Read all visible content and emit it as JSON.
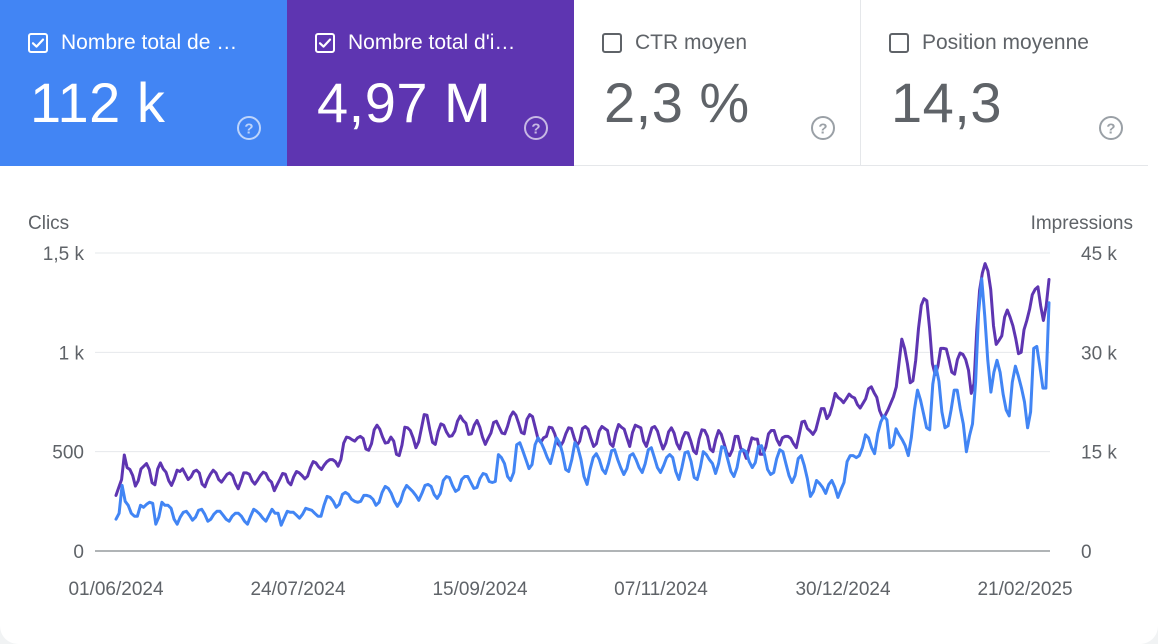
{
  "metrics": [
    {
      "label": "Nombre total de …",
      "value": "112 k",
      "checked": true,
      "color": "#4285f4",
      "icon": "help-icon"
    },
    {
      "label": "Nombre total d'i…",
      "value": "4,97 M",
      "checked": true,
      "color": "#5e35b1",
      "icon": "help-icon"
    },
    {
      "label": "CTR moyen",
      "value": "2,3 %",
      "checked": false,
      "color": "#ffffff",
      "icon": "help-icon"
    },
    {
      "label": "Position moyenne",
      "value": "14,3",
      "checked": false,
      "color": "#ffffff",
      "icon": "help-icon"
    }
  ],
  "chart_data": {
    "type": "line",
    "ylabel_left": "Clics",
    "ylabel_right": "Impressions",
    "y_left_ticks": [
      "0",
      "500",
      "1 k",
      "1,5 k"
    ],
    "y_right_ticks": [
      "0",
      "15 k",
      "30 k",
      "45 k"
    ],
    "ylim_left": [
      0,
      1500
    ],
    "ylim_right": [
      0,
      45000
    ],
    "x_ticks": [
      "01/06/2024",
      "24/07/2024",
      "15/09/2024",
      "07/11/2024",
      "30/12/2024",
      "21/02/2025"
    ],
    "grid": true,
    "series": [
      {
        "name": "Clics",
        "axis": "left",
        "color": "#4285f4",
        "values": [
          160,
          190,
          330,
          250,
          230,
          190,
          175,
          175,
          230,
          220,
          235,
          245,
          240,
          135,
          170,
          245,
          230,
          230,
          215,
          160,
          135,
          170,
          195,
          200,
          180,
          155,
          170,
          205,
          210,
          185,
          150,
          160,
          185,
          200,
          200,
          180,
          160,
          150,
          175,
          190,
          190,
          175,
          150,
          135,
          175,
          210,
          200,
          185,
          165,
          150,
          180,
          210,
          190,
          190,
          130,
          165,
          200,
          195,
          195,
          180,
          165,
          185,
          215,
          210,
          205,
          190,
          175,
          175,
          230,
          275,
          270,
          250,
          220,
          235,
          285,
          295,
          285,
          260,
          250,
          245,
          250,
          280,
          280,
          275,
          260,
          230,
          245,
          295,
          325,
          315,
          290,
          250,
          225,
          250,
          300,
          330,
          315,
          300,
          280,
          255,
          290,
          330,
          335,
          325,
          285,
          265,
          290,
          355,
          375,
          370,
          330,
          300,
          310,
          360,
          375,
          375,
          345,
          315,
          320,
          365,
          390,
          385,
          350,
          345,
          350,
          485,
          470,
          440,
          375,
          355,
          395,
          535,
          545,
          505,
          460,
          415,
          435,
          535,
          570,
          545,
          510,
          470,
          440,
          500,
          570,
          545,
          490,
          410,
          400,
          460,
          545,
          520,
          460,
          375,
          335,
          410,
          470,
          490,
          460,
          410,
          390,
          440,
          505,
          510,
          460,
          420,
          385,
          415,
          480,
          490,
          460,
          420,
          395,
          440,
          510,
          520,
          470,
          420,
          395,
          430,
          470,
          485,
          470,
          400,
          360,
          420,
          495,
          500,
          450,
          370,
          360,
          420,
          500,
          485,
          460,
          440,
          390,
          440,
          525,
          520,
          460,
          400,
          375,
          420,
          500,
          510,
          500,
          450,
          420,
          445,
          525,
          530,
          485,
          410,
          385,
          395,
          465,
          510,
          500,
          440,
          380,
          345,
          380,
          465,
          480,
          430,
          365,
          275,
          300,
          355,
          340,
          320,
          290,
          335,
          355,
          320,
          270,
          310,
          345,
          450,
          480,
          480,
          470,
          480,
          520,
          585,
          570,
          520,
          490,
          590,
          650,
          680,
          660,
          520,
          535,
          615,
          585,
          560,
          530,
          480,
          570,
          710,
          810,
          760,
          690,
          620,
          610,
          840,
          930,
          855,
          700,
          620,
          630,
          710,
          810,
          810,
          715,
          640,
          500,
          580,
          640,
          850,
          1200,
          1370,
          1180,
          960,
          800,
          900,
          960,
          900,
          790,
          710,
          680,
          850,
          930,
          880,
          820,
          750,
          620,
          700,
          1020,
          1030,
          930,
          820,
          820,
          1250
        ]
      },
      {
        "name": "Impressions",
        "axis": "right",
        "color": "#5e35b1",
        "values": [
          8400,
          9600,
          10800,
          14500,
          12600,
          12300,
          11400,
          9800,
          10600,
          12400,
          12800,
          13200,
          12300,
          10300,
          10000,
          12400,
          13300,
          12400,
          11900,
          10600,
          9900,
          10900,
          12200,
          12000,
          12400,
          11600,
          10800,
          11200,
          12000,
          12200,
          11800,
          10100,
          9700,
          10800,
          11600,
          12200,
          11800,
          10800,
          10400,
          11000,
          11600,
          11800,
          11400,
          10200,
          9400,
          10500,
          11800,
          11800,
          11600,
          10600,
          10100,
          10700,
          11400,
          11900,
          11700,
          10800,
          10400,
          9100,
          10000,
          10800,
          11700,
          11600,
          10400,
          10000,
          11200,
          12000,
          11800,
          11400,
          10900,
          11300,
          12600,
          13500,
          13300,
          12700,
          12300,
          13000,
          13500,
          13800,
          13800,
          13500,
          12800,
          13800,
          16300,
          17200,
          17100,
          16800,
          16600,
          17100,
          17300,
          17000,
          15400,
          15200,
          16200,
          18300,
          19000,
          18400,
          17200,
          16300,
          16400,
          17200,
          16600,
          14600,
          14400,
          16000,
          18700,
          18600,
          18200,
          17100,
          15600,
          16500,
          18500,
          20600,
          20500,
          18300,
          16400,
          16100,
          18000,
          19200,
          19000,
          18000,
          17300,
          17400,
          18100,
          19600,
          20400,
          19700,
          19300,
          17600,
          17700,
          19000,
          19700,
          18700,
          17200,
          16100,
          17000,
          17800,
          19400,
          19600,
          18700,
          17800,
          17700,
          18800,
          20300,
          21000,
          20500,
          19300,
          17900,
          17700,
          19900,
          20600,
          20300,
          18600,
          16900,
          16400,
          17100,
          17300,
          18700,
          18600,
          17700,
          16300,
          15800,
          16500,
          17700,
          18600,
          18500,
          17100,
          15900,
          16600,
          18500,
          18800,
          18400,
          17000,
          15800,
          16200,
          18100,
          18800,
          18500,
          18200,
          16200,
          15800,
          17800,
          19100,
          18700,
          18400,
          17100,
          15800,
          17900,
          19000,
          18800,
          18600,
          16600,
          15800,
          17200,
          18600,
          18800,
          18100,
          16600,
          15400,
          16300,
          18000,
          18600,
          17800,
          16200,
          15400,
          17000,
          17900,
          17800,
          16600,
          15100,
          14700,
          16900,
          18300,
          18200,
          17300,
          15400,
          15000,
          16900,
          18200,
          17600,
          16200,
          14800,
          14400,
          15300,
          17300,
          17300,
          15500,
          15100,
          14000,
          15600,
          17100,
          16900,
          16900,
          14600,
          14600,
          15700,
          17700,
          18200,
          18200,
          16800,
          16000,
          17100,
          17300,
          17300,
          17000,
          16200,
          15600,
          17500,
          19500,
          19600,
          18500,
          18100,
          17600,
          18300,
          19900,
          21500,
          21500,
          20000,
          20600,
          22000,
          23800,
          23200,
          22900,
          22400,
          23000,
          23700,
          23300,
          23100,
          22100,
          21600,
          22300,
          23000,
          24500,
          24800,
          23900,
          23200,
          21200,
          20200,
          20500,
          21300,
          22300,
          23300,
          24800,
          28500,
          32000,
          30600,
          28300,
          25400,
          25700,
          28800,
          33600,
          37100,
          38100,
          37800,
          33600,
          28300,
          26600,
          27900,
          30600,
          30600,
          30500,
          28900,
          27000,
          26700,
          28900,
          29900,
          29700,
          28900,
          27300,
          23800,
          25300,
          33500,
          39400,
          42000,
          43400,
          42300,
          39500,
          34000,
          31200,
          31800,
          32500,
          35300,
          36400,
          35300,
          34000,
          32100,
          29800,
          30000,
          33400,
          34800,
          36500,
          38700,
          39500,
          39900,
          37000,
          34800,
          37000,
          41000
        ]
      }
    ]
  }
}
